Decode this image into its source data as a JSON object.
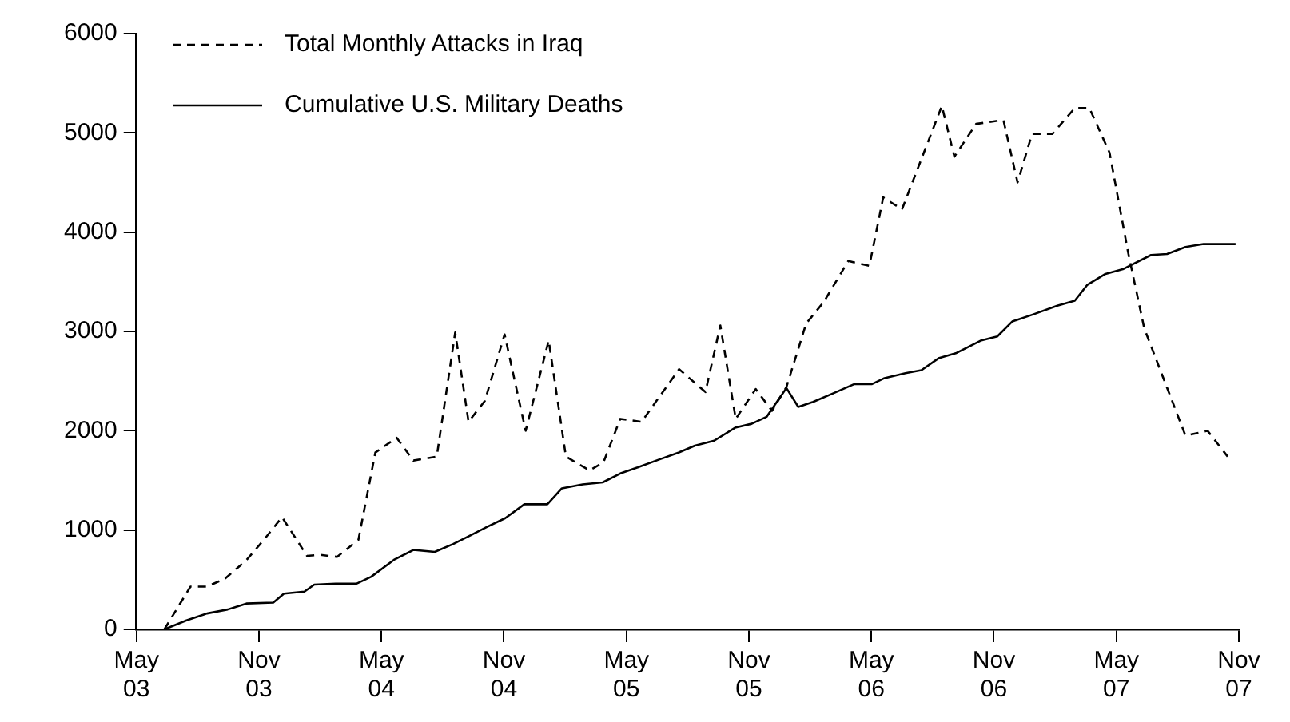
{
  "chart_data": {
    "type": "line",
    "legend": "top left",
    "grid": false,
    "marker": "none",
    "xlim": [
      "2003-05",
      "2007-11"
    ],
    "xticks": [
      {
        "value": "2003-05",
        "label": "May 03"
      },
      {
        "value": "2003-11",
        "label": "Nov 03"
      },
      {
        "value": "2004-05",
        "label": "May 04"
      },
      {
        "value": "2004-11",
        "label": "Nov 04"
      },
      {
        "value": "2005-05",
        "label": "May 05"
      },
      {
        "value": "2005-11",
        "label": "Nov 05"
      },
      {
        "value": "2006-05",
        "label": "May 06"
      },
      {
        "value": "2006-11",
        "label": "Nov 06"
      },
      {
        "value": "2007-05",
        "label": "May 07"
      },
      {
        "value": "2007-11",
        "label": "Nov 07"
      }
    ],
    "ylim": [
      0,
      6000
    ],
    "yticks": [
      0,
      1000,
      2000,
      3000,
      4000,
      5000,
      6000
    ],
    "series": [
      {
        "name": "Total Monthly Attacks in Iraq",
        "color": "#000000",
        "line_style": "dashed",
        "x": [
          "2003-06-12",
          "2003-07-21",
          "2003-08-15",
          "2003-09-11",
          "2003-10-12",
          "2003-11-08",
          "2003-12-05",
          "2004-01-12",
          "2004-02-01",
          "2004-02-25",
          "2004-03-28",
          "2004-04-22",
          "2004-05-24",
          "2004-06-18",
          "2004-07-23",
          "2004-08-20",
          "2004-09-09",
          "2004-10-03",
          "2004-11-02",
          "2004-12-03",
          "2005-01-07",
          "2005-02-02",
          "2005-03-07",
          "2005-03-28",
          "2005-04-22",
          "2005-05-24",
          "2005-07-19",
          "2005-08-28",
          "2005-09-19",
          "2005-10-12",
          "2005-11-11",
          "2005-12-05",
          "2005-12-27",
          "2006-01-26",
          "2006-02-20",
          "2006-03-28",
          "2006-04-28",
          "2006-05-19",
          "2006-06-16",
          "2006-08-15",
          "2006-09-03",
          "2006-10-05",
          "2006-11-15",
          "2006-12-06",
          "2006-12-28",
          "2007-01-28",
          "2007-02-28",
          "2007-03-22",
          "2007-04-21",
          "2007-05-19",
          "2007-06-12",
          "2007-08-13",
          "2007-09-15",
          "2007-10-15"
        ],
        "values": [
          0,
          430,
          430,
          510,
          690,
          900,
          1130,
          740,
          750,
          730,
          900,
          1780,
          1930,
          1700,
          1740,
          2990,
          2090,
          2300,
          2970,
          2000,
          2910,
          1740,
          1600,
          1680,
          2120,
          2090,
          2620,
          2390,
          3060,
          2120,
          2420,
          2200,
          2440,
          3080,
          3300,
          3710,
          3660,
          4350,
          4230,
          5270,
          4760,
          5090,
          5130,
          4500,
          4990,
          4990,
          5250,
          5250,
          4800,
          3790,
          3030,
          1950,
          2000,
          1740
        ]
      },
      {
        "name": "Cumulative U.S. Military Deaths",
        "color": "#000000",
        "line_style": "solid",
        "x": [
          "2003-06-12",
          "2003-07-15",
          "2003-08-15",
          "2003-09-15",
          "2003-10-13",
          "2003-11-22",
          "2003-12-08",
          "2004-01-08",
          "2004-01-23",
          "2004-02-23",
          "2004-03-25",
          "2004-04-16",
          "2004-05-20",
          "2004-06-18",
          "2004-07-20",
          "2004-08-17",
          "2004-09-10",
          "2004-10-06",
          "2004-11-03",
          "2004-12-01",
          "2005-01-05",
          "2005-01-27",
          "2005-02-25",
          "2005-03-27",
          "2005-04-22",
          "2005-05-18",
          "2005-06-19",
          "2005-07-18",
          "2005-08-12",
          "2005-09-10",
          "2005-10-11",
          "2005-11-05",
          "2005-11-27",
          "2005-12-27",
          "2006-01-14",
          "2006-02-05",
          "2006-03-06",
          "2006-04-06",
          "2006-05-02",
          "2006-05-21",
          "2006-06-21",
          "2006-07-15",
          "2006-08-10",
          "2006-09-05",
          "2006-10-13",
          "2006-11-06",
          "2006-11-28",
          "2006-12-29",
          "2007-02-04",
          "2007-02-28",
          "2007-03-19",
          "2007-04-15",
          "2007-05-12",
          "2007-06-22",
          "2007-07-16",
          "2007-08-13",
          "2007-09-09",
          "2007-10-27"
        ],
        "values": [
          0,
          90,
          160,
          200,
          260,
          270,
          360,
          380,
          450,
          460,
          460,
          530,
          700,
          800,
          780,
          860,
          940,
          1030,
          1120,
          1260,
          1260,
          1420,
          1460,
          1480,
          1570,
          1630,
          1710,
          1780,
          1850,
          1900,
          2030,
          2070,
          2140,
          2430,
          2240,
          2290,
          2380,
          2470,
          2470,
          2530,
          2580,
          2610,
          2730,
          2780,
          2910,
          2950,
          3100,
          3170,
          3260,
          3310,
          3470,
          3580,
          3630,
          3770,
          3780,
          3850,
          3880,
          3880
        ]
      }
    ]
  }
}
